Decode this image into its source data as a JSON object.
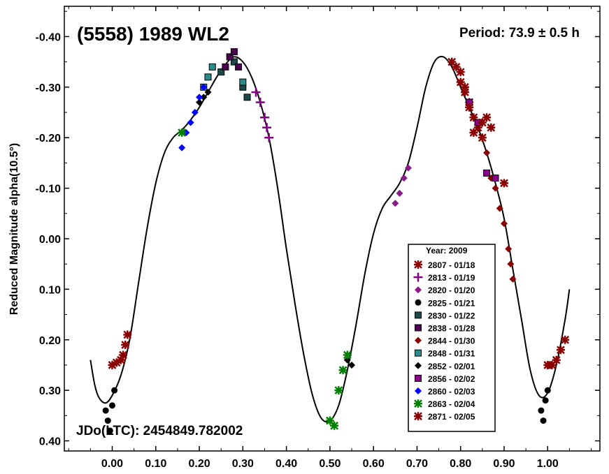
{
  "chart_data": {
    "type": "scatter",
    "title": "(5558) 1989 WL2",
    "period_label": "Period: 73.9 ± 0.5 h",
    "epoch_label": "JDo(LTC): 2454849.782002",
    "xlabel": "",
    "ylabel": "Reduced Magnitude alpha(10.5°)",
    "xlim": [
      -0.11,
      1.12
    ],
    "ylim": [
      0.42,
      -0.46
    ],
    "y_reversed": true,
    "x_ticks": [
      "0.00",
      "0.10",
      "0.20",
      "0.30",
      "0.40",
      "0.50",
      "0.60",
      "0.70",
      "0.80",
      "0.90",
      "1.00"
    ],
    "y_ticks": [
      "-0.40",
      "-0.30",
      "-0.20",
      "-0.10",
      "0.00",
      "0.10",
      "0.20",
      "0.30",
      "0.40"
    ],
    "legend": {
      "title": "Year: 2009",
      "placement": "bottom-right"
    },
    "fit_curve": [
      [
        -0.05,
        0.24
      ],
      [
        -0.04,
        0.29
      ],
      [
        -0.03,
        0.315
      ],
      [
        -0.015,
        0.325
      ],
      [
        0.0,
        0.31
      ],
      [
        0.02,
        0.27
      ],
      [
        0.04,
        0.2
      ],
      [
        0.06,
        0.09
      ],
      [
        0.08,
        -0.02
      ],
      [
        0.1,
        -0.11
      ],
      [
        0.12,
        -0.17
      ],
      [
        0.14,
        -0.2
      ],
      [
        0.16,
        -0.215
      ],
      [
        0.18,
        -0.235
      ],
      [
        0.2,
        -0.26
      ],
      [
        0.22,
        -0.29
      ],
      [
        0.24,
        -0.32
      ],
      [
        0.26,
        -0.345
      ],
      [
        0.28,
        -0.36
      ],
      [
        0.3,
        -0.35
      ],
      [
        0.32,
        -0.32
      ],
      [
        0.34,
        -0.27
      ],
      [
        0.36,
        -0.2
      ],
      [
        0.38,
        -0.1
      ],
      [
        0.4,
        0.02
      ],
      [
        0.42,
        0.13
      ],
      [
        0.44,
        0.23
      ],
      [
        0.46,
        0.31
      ],
      [
        0.48,
        0.355
      ],
      [
        0.5,
        0.36
      ],
      [
        0.52,
        0.33
      ],
      [
        0.54,
        0.26
      ],
      [
        0.56,
        0.17
      ],
      [
        0.58,
        0.07
      ],
      [
        0.6,
        -0.01
      ],
      [
        0.62,
        -0.06
      ],
      [
        0.64,
        -0.085
      ],
      [
        0.66,
        -0.11
      ],
      [
        0.68,
        -0.15
      ],
      [
        0.7,
        -0.22
      ],
      [
        0.72,
        -0.3
      ],
      [
        0.74,
        -0.35
      ],
      [
        0.76,
        -0.36
      ],
      [
        0.78,
        -0.34
      ],
      [
        0.8,
        -0.3
      ],
      [
        0.82,
        -0.26
      ],
      [
        0.84,
        -0.22
      ],
      [
        0.86,
        -0.17
      ],
      [
        0.88,
        -0.11
      ],
      [
        0.9,
        -0.04
      ],
      [
        0.92,
        0.06
      ],
      [
        0.94,
        0.16
      ],
      [
        0.96,
        0.26
      ],
      [
        0.98,
        0.31
      ],
      [
        1.0,
        0.305
      ],
      [
        1.02,
        0.25
      ],
      [
        1.04,
        0.16
      ],
      [
        1.05,
        0.1
      ]
    ],
    "series": [
      {
        "name": "2807 - 01/18",
        "marker": "star",
        "color": "#8b0000",
        "points": [
          [
            0.0,
            0.25
          ],
          [
            0.01,
            0.245
          ],
          [
            0.02,
            0.24
          ],
          [
            0.025,
            0.23
          ],
          [
            0.03,
            0.21
          ],
          [
            0.035,
            0.19
          ],
          [
            0.78,
            -0.35
          ],
          [
            0.79,
            -0.34
          ],
          [
            0.8,
            -0.31
          ],
          [
            0.81,
            -0.29
          ],
          [
            0.82,
            -0.27
          ],
          [
            0.83,
            -0.24
          ],
          [
            0.84,
            -0.22
          ],
          [
            0.85,
            -0.2
          ],
          [
            0.86,
            -0.24
          ],
          [
            0.87,
            -0.22
          ],
          [
            1.0,
            0.25
          ],
          [
            1.01,
            0.25
          ],
          [
            1.02,
            0.24
          ],
          [
            1.03,
            0.22
          ],
          [
            1.04,
            0.2
          ]
        ]
      },
      {
        "name": "2813 - 01/19",
        "marker": "plus",
        "color": "#800080",
        "points": [
          [
            0.33,
            -0.29
          ],
          [
            0.34,
            -0.27
          ],
          [
            0.35,
            -0.24
          ],
          [
            0.355,
            -0.22
          ],
          [
            0.36,
            -0.2
          ]
        ]
      },
      {
        "name": "2820 - 01/20",
        "marker": "diamond",
        "color": "#8b1a8b",
        "points": [
          [
            0.65,
            -0.07
          ],
          [
            0.66,
            -0.09
          ],
          [
            0.67,
            -0.12
          ],
          [
            0.68,
            -0.14
          ]
        ]
      },
      {
        "name": "2825 - 01/21",
        "marker": "circle",
        "color": "#000000",
        "points": [
          [
            -0.015,
            0.34
          ],
          [
            -0.01,
            0.36
          ],
          [
            -0.005,
            0.38
          ],
          [
            0.0,
            0.33
          ],
          [
            0.005,
            0.3
          ],
          [
            0.985,
            0.34
          ],
          [
            0.99,
            0.36
          ],
          [
            0.995,
            0.32
          ],
          [
            1.0,
            0.3
          ]
        ]
      },
      {
        "name": "2830 - 01/22",
        "marker": "square",
        "color": "#1a4a4a",
        "points": [
          [
            0.25,
            -0.33
          ],
          [
            0.28,
            -0.35
          ],
          [
            0.3,
            -0.3
          ],
          [
            0.31,
            -0.28
          ]
        ]
      },
      {
        "name": "2838 - 01/28",
        "marker": "square",
        "color": "#4b0050",
        "points": [
          [
            0.26,
            -0.34
          ],
          [
            0.27,
            -0.36
          ],
          [
            0.28,
            -0.37
          ],
          [
            0.29,
            -0.34
          ]
        ]
      },
      {
        "name": "2844 - 01/30",
        "marker": "diamond",
        "color": "#8b0000",
        "points": [
          [
            0.86,
            -0.17
          ],
          [
            0.87,
            -0.12
          ],
          [
            0.88,
            -0.1
          ],
          [
            0.89,
            -0.06
          ],
          [
            0.9,
            -0.03
          ],
          [
            0.91,
            0.02
          ],
          [
            0.915,
            0.05
          ],
          [
            0.92,
            0.08
          ]
        ]
      },
      {
        "name": "2848 - 01/31",
        "marker": "square",
        "color": "#2e8b8b",
        "points": [
          [
            0.21,
            -0.3
          ],
          [
            0.22,
            -0.32
          ],
          [
            0.23,
            -0.34
          ],
          [
            0.3,
            -0.31
          ]
        ]
      },
      {
        "name": "2852 - 02/01",
        "marker": "diamond",
        "color": "#000000",
        "points": [
          [
            0.2,
            -0.27
          ],
          [
            0.21,
            -0.28
          ],
          [
            0.22,
            -0.29
          ],
          [
            0.55,
            0.25
          ],
          [
            0.54,
            0.24
          ]
        ]
      },
      {
        "name": "2856 - 02/02",
        "marker": "square",
        "color": "#8b008b",
        "points": [
          [
            0.82,
            -0.27
          ],
          [
            0.84,
            -0.23
          ],
          [
            0.86,
            -0.13
          ],
          [
            0.88,
            -0.12
          ]
        ]
      },
      {
        "name": "2860 - 02/03",
        "marker": "diamond",
        "color": "#0000ff",
        "points": [
          [
            0.16,
            -0.18
          ],
          [
            0.17,
            -0.21
          ],
          [
            0.18,
            -0.23
          ],
          [
            0.19,
            -0.25
          ],
          [
            0.2,
            -0.28
          ],
          [
            0.21,
            -0.3
          ]
        ]
      },
      {
        "name": "2863 - 02/04",
        "marker": "star",
        "color": "#008000",
        "points": [
          [
            0.16,
            -0.21
          ],
          [
            0.5,
            0.36
          ],
          [
            0.51,
            0.37
          ],
          [
            0.52,
            0.3
          ],
          [
            0.53,
            0.26
          ],
          [
            0.54,
            0.23
          ]
        ]
      },
      {
        "name": "2871 - 02/05",
        "marker": "star",
        "color": "#8b0000",
        "points": [
          [
            0.8,
            -0.33
          ],
          [
            0.81,
            -0.3
          ],
          [
            0.82,
            -0.26
          ],
          [
            0.83,
            -0.21
          ],
          [
            0.85,
            -0.23
          ],
          [
            0.9,
            -0.11
          ]
        ]
      }
    ]
  }
}
